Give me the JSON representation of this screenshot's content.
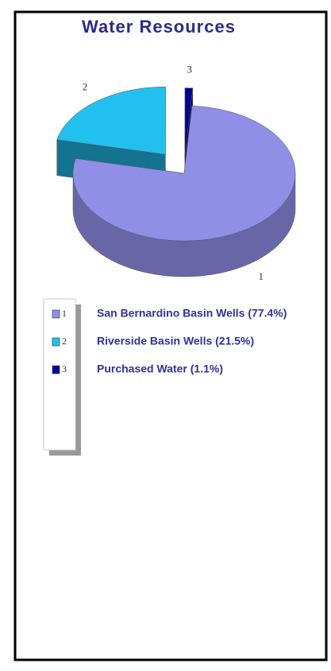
{
  "chart_data": {
    "type": "pie3d",
    "title": "Water Resources",
    "categories": [
      "1",
      "2",
      "3"
    ],
    "legend_labels": [
      "San Bernardino Basin Wells (77.4%)",
      "Riverside Basin Wells (21.5%)",
      "Purchased Water (1.1%)"
    ],
    "values": [
      77.4,
      21.5,
      1.1
    ],
    "colors": [
      "#8f8fe8",
      "#22c0ee",
      "#000090"
    ]
  }
}
